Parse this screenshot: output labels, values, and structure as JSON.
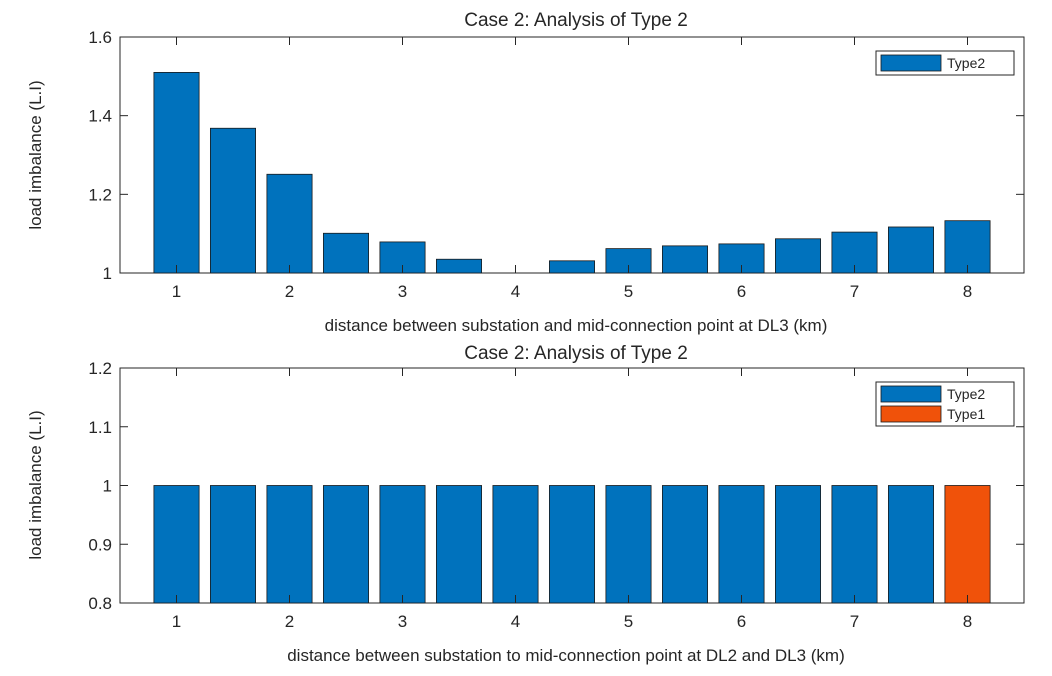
{
  "chart_data": [
    {
      "type": "bar",
      "title": "Case 2: Analysis of Type 2",
      "xlabel": "distance between substation and mid-connection point at DL3 (km)",
      "ylabel": "load imbalance (L.I)",
      "x": [
        1,
        1.5,
        2,
        2.5,
        3,
        3.5,
        4,
        4.5,
        5,
        5.5,
        6,
        6.5,
        7,
        7.5,
        8
      ],
      "xlim": [
        0.5,
        8.5
      ],
      "ylim": [
        1,
        1.6
      ],
      "xticks": [
        "1",
        "2",
        "3",
        "4",
        "5",
        "6",
        "7",
        "8"
      ],
      "yticks": [
        "1",
        "1.2",
        "1.4",
        "1.6"
      ],
      "series": [
        {
          "name": "Type2",
          "color": "#0072bd",
          "values": [
            1.51,
            1.368,
            1.251,
            1.101,
            1.079,
            1.035,
            1.0,
            1.031,
            1.062,
            1.069,
            1.074,
            1.087,
            1.104,
            1.117,
            1.133
          ]
        }
      ],
      "legend": "top-right",
      "grid": false
    },
    {
      "type": "bar",
      "title": "Case 2: Analysis of Type 2",
      "xlabel": "distance between substation to mid-connection point at DL2 and DL3 (km)",
      "ylabel": "load imbalance (L.I)",
      "x": [
        1,
        1.5,
        2,
        2.5,
        3,
        3.5,
        4,
        4.5,
        5,
        5.5,
        6,
        6.5,
        7,
        7.5,
        8
      ],
      "xlim": [
        0.5,
        8.5
      ],
      "ylim": [
        0.8,
        1.2
      ],
      "xticks": [
        "1",
        "2",
        "3",
        "4",
        "5",
        "6",
        "7",
        "8"
      ],
      "yticks": [
        "0.8",
        "0.9",
        "1",
        "1.1",
        "1.2"
      ],
      "series": [
        {
          "name": "Type2",
          "color": "#0072bd",
          "values": [
            1,
            1,
            1,
            1,
            1,
            1,
            1,
            1,
            1,
            1,
            1,
            1,
            1,
            1,
            null
          ]
        },
        {
          "name": "Type1",
          "color": "#f0520a",
          "values": [
            null,
            null,
            null,
            null,
            null,
            null,
            null,
            null,
            null,
            null,
            null,
            null,
            null,
            null,
            1
          ]
        }
      ],
      "legend": "top-right",
      "grid": false
    }
  ]
}
